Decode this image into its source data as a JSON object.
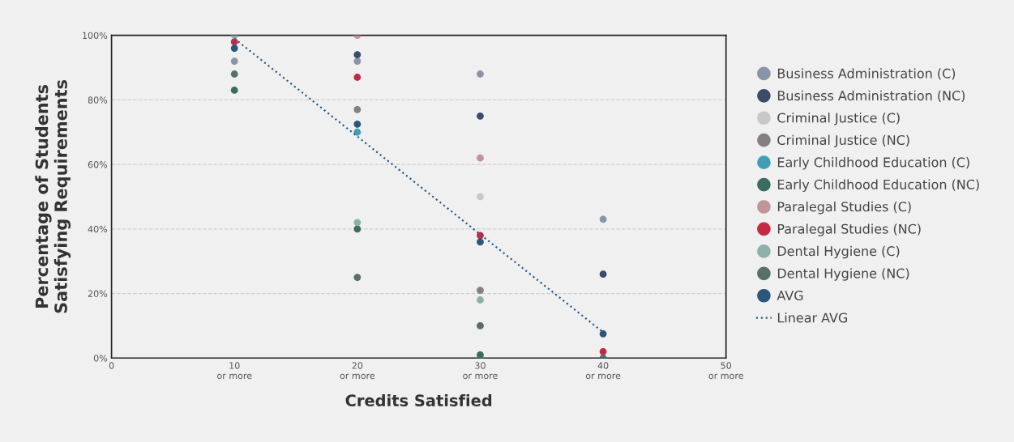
{
  "chart_data": {
    "type": "scatter",
    "xlabel": "Credits Satisfied",
    "ylabel": "Percentage of Students\nSatisfying Requirements",
    "xlim": [
      0,
      50
    ],
    "xticks": [
      0,
      {
        "value": 10,
        "label": "10\nor more"
      },
      {
        "value": 20,
        "label": "20\nor more"
      },
      {
        "value": 30,
        "label": "30\nor more"
      },
      {
        "value": 40,
        "label": "40\nor more"
      },
      {
        "value": 50,
        "label": "50\nor more"
      }
    ],
    "ylim": [
      0,
      100
    ],
    "yticks": [
      {
        "value": 0,
        "label": "0%"
      },
      {
        "value": 20,
        "label": "20%"
      },
      {
        "value": 40,
        "label": "40%"
      },
      {
        "value": 60,
        "label": "60%"
      },
      {
        "value": 80,
        "label": "80%"
      },
      {
        "value": 100,
        "label": "100%"
      }
    ],
    "grid": "y",
    "legend": "right",
    "marker": "circle",
    "series": [
      {
        "name": "Business Administration (C)",
        "color": "#8a94a8",
        "x": [
          10,
          20,
          30,
          40
        ],
        "values": [
          92,
          92,
          88,
          43
        ]
      },
      {
        "name": "Business Administration (NC)",
        "color": "#3d4b6b",
        "x": [
          20,
          30,
          40
        ],
        "values": [
          94,
          75,
          26
        ]
      },
      {
        "name": "Criminal Justice (C)",
        "color": "#c8c8c8",
        "x": [
          30
        ],
        "values": [
          50
        ]
      },
      {
        "name": "Criminal Justice (NC)",
        "color": "#857f7f",
        "x": [
          20,
          30
        ],
        "values": [
          77,
          21
        ]
      },
      {
        "name": "Early Childhood Education (C)",
        "color": "#3fa0b5",
        "x": [
          20,
          30
        ],
        "values": [
          70,
          0
        ]
      },
      {
        "name": "Early Childhood Education (NC)",
        "color": "#3c6b62",
        "x": [
          10,
          20,
          30
        ],
        "values": [
          83,
          40,
          1
        ]
      },
      {
        "name": "Paralegal Studies (C)",
        "color": "#bf959b",
        "x": [
          20,
          30
        ],
        "values": [
          100,
          62
        ]
      },
      {
        "name": "Paralegal Studies (NC)",
        "color": "#c52a45",
        "x": [
          10,
          20,
          30,
          40
        ],
        "values": [
          98,
          87,
          38,
          2
        ]
      },
      {
        "name": "Dental Hygiene (C)",
        "color": "#8db0aa",
        "x": [
          10,
          20,
          30
        ],
        "values": [
          100,
          42,
          18
        ]
      },
      {
        "name": "Dental Hygiene (NC)",
        "color": "#56706a",
        "x": [
          10,
          20,
          30,
          40
        ],
        "values": [
          88,
          25,
          10,
          0
        ]
      },
      {
        "name": "AVG",
        "color": "#2a577a",
        "x": [
          10,
          20,
          30,
          40
        ],
        "values": [
          96,
          72.5,
          36,
          7.5
        ]
      },
      {
        "name": "Linear AVG",
        "type": "line",
        "color": "#2a5e8e",
        "line_style": "dotted",
        "marker": "none",
        "x": [
          10,
          40
        ],
        "values": [
          99,
          8
        ]
      }
    ]
  }
}
